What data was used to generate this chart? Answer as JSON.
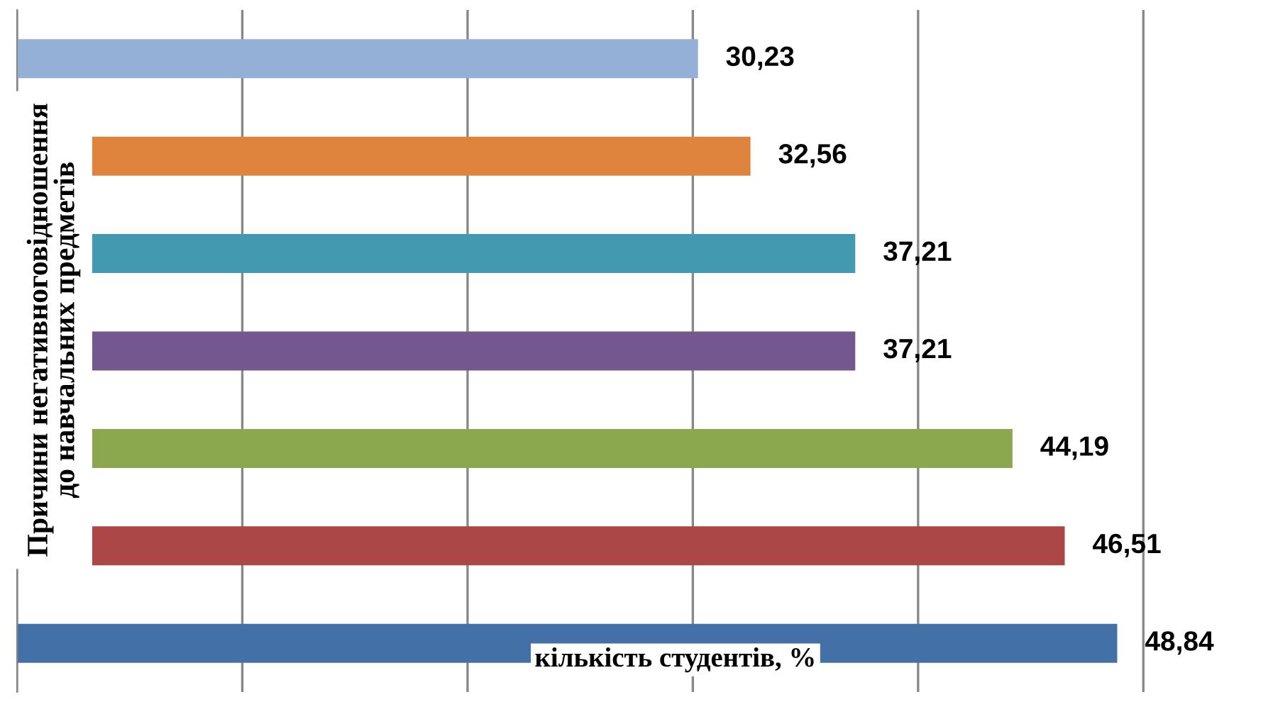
{
  "chart_data": {
    "type": "bar",
    "orientation": "horizontal",
    "categories": [
      null,
      null,
      null,
      null,
      null,
      null,
      null
    ],
    "values": [
      30.23,
      32.56,
      37.21,
      37.21,
      44.19,
      46.51,
      48.84
    ],
    "colors": [
      "#95b0d7",
      "#de843c",
      "#4299b0",
      "#74578f",
      "#8ba84e",
      "#ab4746",
      "#4470a8"
    ],
    "value_labels": [
      "30,23",
      "32,56",
      "37,21",
      "37,21",
      "44,19",
      "46,51",
      "48,84"
    ],
    "xlabel": "кількість студентів, %",
    "ylabel": "Причини негативноговідношення\nдо навчальних предметів",
    "grid": "x"
  }
}
